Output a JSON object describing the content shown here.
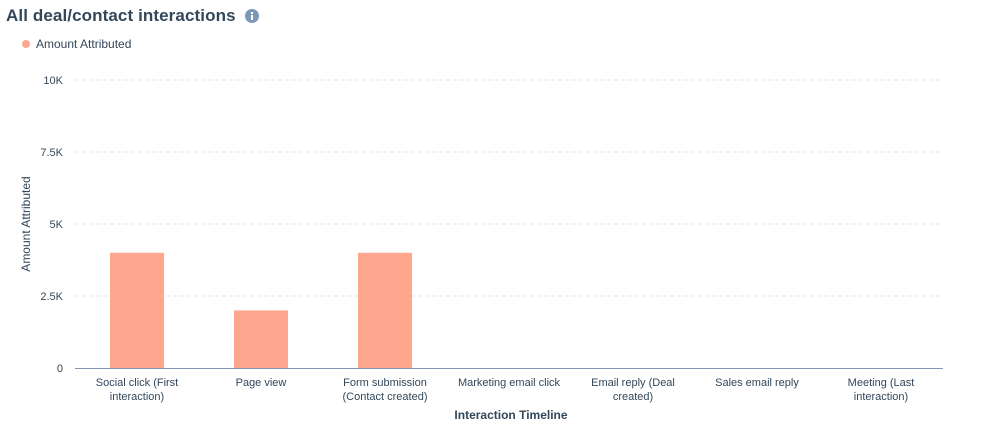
{
  "header": {
    "title": "All deal/contact interactions",
    "info_icon": "info-icon"
  },
  "colors": {
    "bar": "#ffa78e",
    "grid": "#dfe3eb",
    "axis": "#7c98b6",
    "text": "#33475b",
    "info_icon": "#7c98b6"
  },
  "chart_data": {
    "type": "bar",
    "title": "All deal/contact interactions",
    "legend_position": "top-left",
    "grid": true,
    "xlabel": "Interaction Timeline",
    "ylabel": "Amount Attributed",
    "ylim": [
      0,
      10000
    ],
    "y_ticks": [
      {
        "value": 0,
        "label": "0"
      },
      {
        "value": 2500,
        "label": "2.5K"
      },
      {
        "value": 5000,
        "label": "5K"
      },
      {
        "value": 7500,
        "label": "7.5K"
      },
      {
        "value": 10000,
        "label": "10K"
      }
    ],
    "categories": [
      [
        "Social click (First",
        "interaction)"
      ],
      [
        "Page view"
      ],
      [
        "Form submission",
        "(Contact created)"
      ],
      [
        "Marketing email click"
      ],
      [
        "Email reply (Deal",
        "created)"
      ],
      [
        "Sales email reply"
      ],
      [
        "Meeting (Last",
        "interaction)"
      ]
    ],
    "series": [
      {
        "name": "Amount Attributed",
        "values": [
          4000,
          2000,
          4000,
          0,
          0,
          0,
          0
        ]
      }
    ]
  }
}
